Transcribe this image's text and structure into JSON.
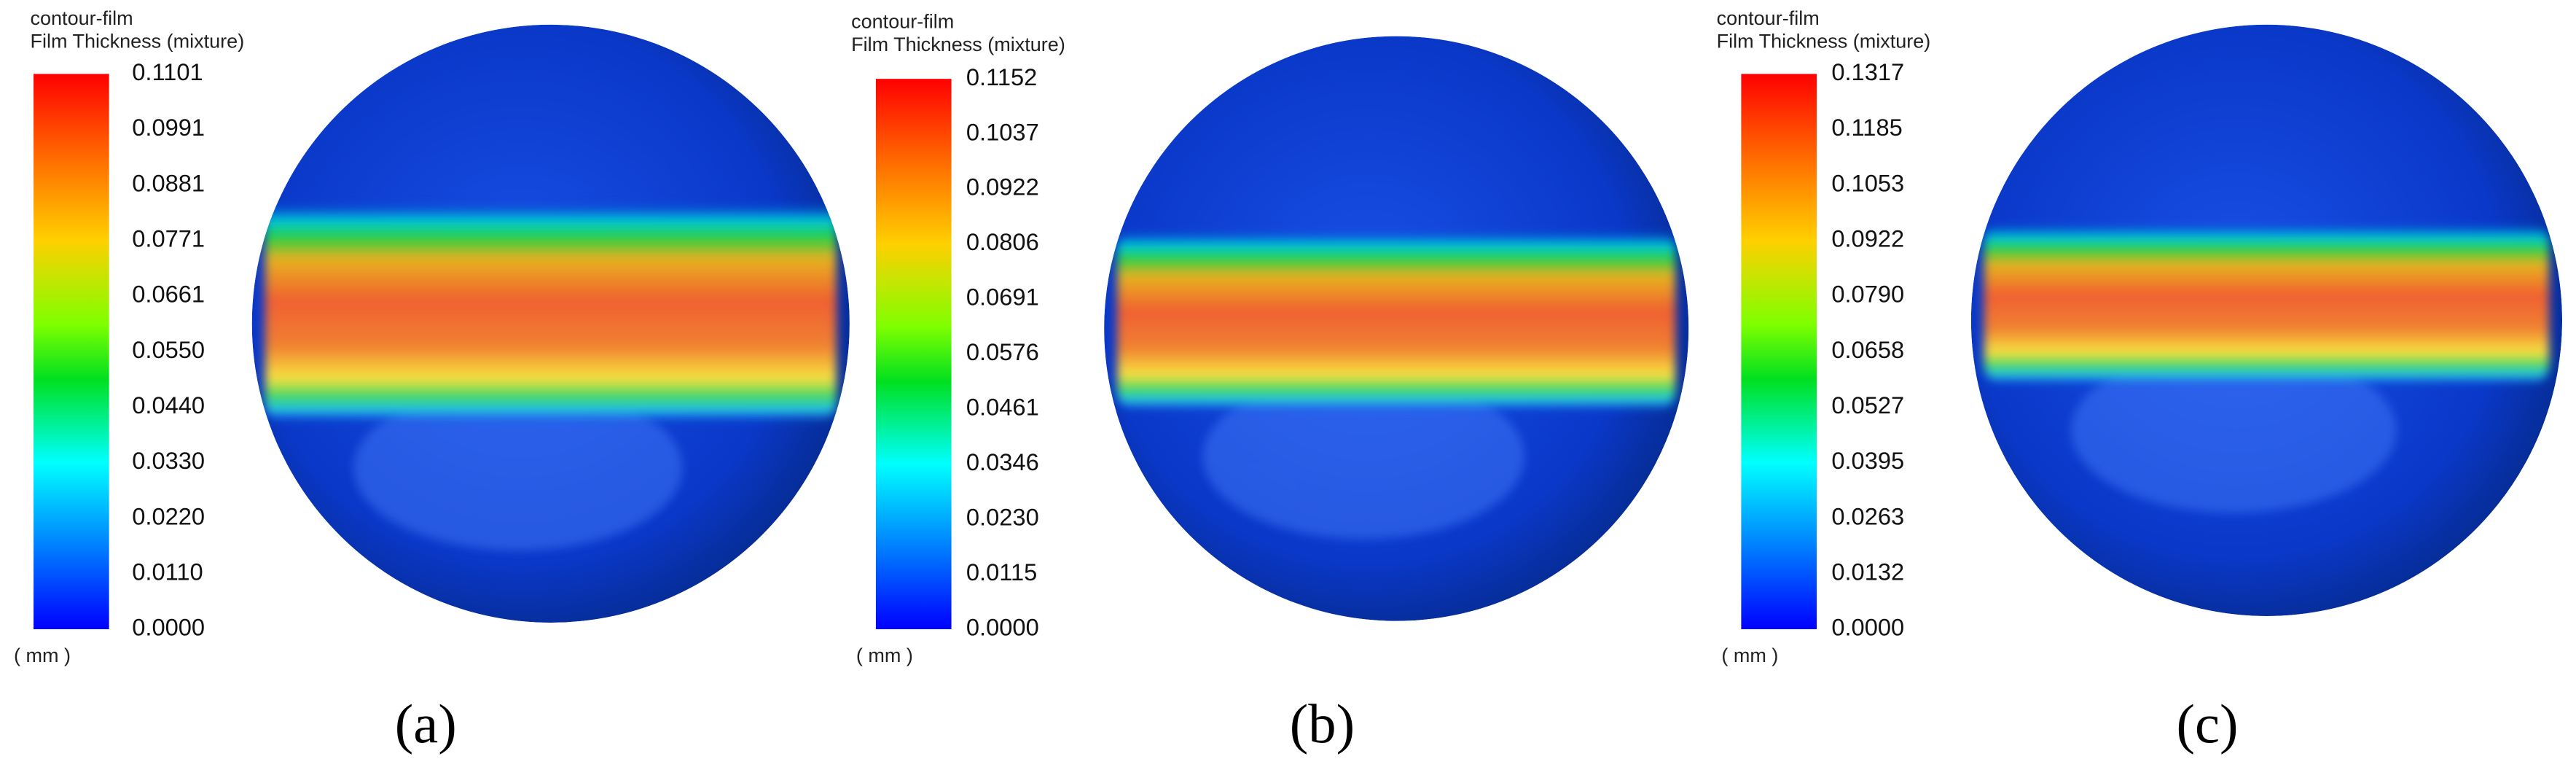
{
  "panels": [
    {
      "header": [
        "contour-film",
        "Film Thickness (mixture)"
      ],
      "ticks": [
        "0.1101",
        "0.0991",
        "0.0881",
        "0.0771",
        "0.0661",
        "0.0550",
        "0.0440",
        "0.0330",
        "0.0220",
        "0.0110",
        "0.0000"
      ],
      "unit": "( mm )",
      "caption": "(a)"
    },
    {
      "header": [
        "contour-film",
        "Film Thickness (mixture)"
      ],
      "ticks": [
        "0.1152",
        "0.1037",
        "0.0922",
        "0.0806",
        "0.0691",
        "0.0576",
        "0.0461",
        "0.0346",
        "0.0230",
        "0.0115",
        "0.0000"
      ],
      "unit": "( mm )",
      "caption": "(b)"
    },
    {
      "header": [
        "contour-film",
        "Film Thickness (mixture)"
      ],
      "ticks": [
        "0.1317",
        "0.1185",
        "0.1053",
        "0.0922",
        "0.0790",
        "0.0658",
        "0.0527",
        "0.0395",
        "0.0263",
        "0.0132",
        "0.0000"
      ],
      "unit": "( mm )",
      "caption": "(c)"
    }
  ]
}
